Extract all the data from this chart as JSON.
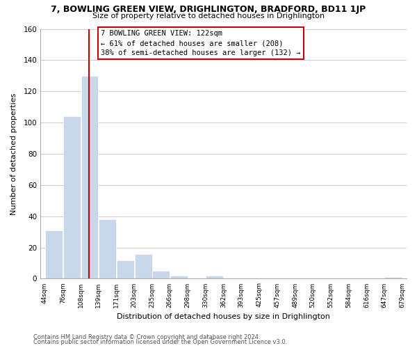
{
  "title": "7, BOWLING GREEN VIEW, DRIGHLINGTON, BRADFORD, BD11 1JP",
  "subtitle": "Size of property relative to detached houses in Drighlington",
  "xlabel": "Distribution of detached houses by size in Drighlington",
  "ylabel": "Number of detached properties",
  "footer_lines": [
    "Contains HM Land Registry data © Crown copyright and database right 2024.",
    "Contains public sector information licensed under the Open Government Licence v3.0."
  ],
  "bin_edges": [
    44,
    76,
    108,
    139,
    171,
    203,
    235,
    266,
    298,
    330,
    362,
    393,
    425,
    457,
    489,
    520,
    552,
    584,
    616,
    647,
    679
  ],
  "bar_heights": [
    31,
    104,
    130,
    38,
    12,
    16,
    5,
    2,
    0,
    2,
    0,
    0,
    0,
    0,
    0,
    0,
    0,
    0,
    0,
    1
  ],
  "bar_color": "#c8d8ea",
  "bar_edge_color": "#ffffff",
  "reference_line_x": 122,
  "reference_line_color": "#cc0000",
  "annotation_line1": "7 BOWLING GREEN VIEW: 122sqm",
  "annotation_line2": "← 61% of detached houses are smaller (208)",
  "annotation_line3": "38% of semi-detached houses are larger (132) →",
  "ylim": [
    0,
    160
  ],
  "background_color": "#ffffff",
  "grid_color": "#d0d0d0"
}
